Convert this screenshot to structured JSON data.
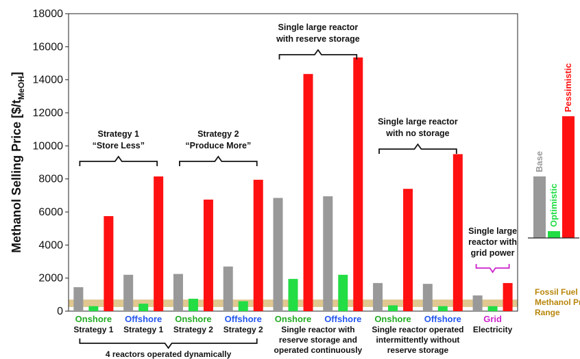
{
  "chart_data": {
    "type": "bar",
    "ylabel": "Methanol Selling Price [$/t",
    "ylabel_sub": "MeOH",
    "ylabel_end": "]",
    "ylim": [
      0,
      18000
    ],
    "yticks": [
      "0",
      "2000",
      "4000",
      "6000",
      "8000",
      "10000",
      "12000",
      "14000",
      "16000",
      "18000"
    ],
    "grid": false,
    "colors": {
      "Base": "#999999",
      "Optimistic": "#22dd44",
      "Pessimistic": "#ff1111"
    },
    "groups": [
      {
        "line1": "Onshore",
        "line1_color": "#22aa22",
        "line2": "Strategy 1",
        "values": [
          1450,
          300,
          5750
        ]
      },
      {
        "line1": "Offshore",
        "line1_color": "#2255ee",
        "line2": "Strategy 1",
        "values": [
          2200,
          450,
          8150
        ]
      },
      {
        "line1": "Onshore",
        "line1_color": "#22aa22",
        "line2": "Strategy 2",
        "values": [
          2250,
          750,
          6750
        ]
      },
      {
        "line1": "Offshore",
        "line1_color": "#2255ee",
        "line2": "Strategy 2",
        "values": [
          2700,
          600,
          7950
        ]
      },
      {
        "line1": "Onshore",
        "line1_color": "#22aa22",
        "line2": "",
        "values": [
          6850,
          1950,
          14350
        ]
      },
      {
        "line1": "Offshore",
        "line1_color": "#2255ee",
        "line2": "",
        "values": [
          6950,
          2200,
          15350
        ]
      },
      {
        "line1": "Onshore",
        "line1_color": "#22aa22",
        "line2": "",
        "values": [
          1700,
          350,
          7400
        ]
      },
      {
        "line1": "Offshore",
        "line1_color": "#2255ee",
        "line2": "",
        "values": [
          1650,
          300,
          9500
        ]
      },
      {
        "line1": "Grid",
        "line1_color": "#cc22cc",
        "line2": "Electricity",
        "line2_color": "#cc22cc",
        "values": [
          950,
          300,
          1700
        ]
      }
    ],
    "fossil_band": [
      250,
      700
    ],
    "bottom_labels": {
      "reserve": [
        "Single reactor with",
        "reserve storage and",
        "operated continuously"
      ],
      "intermittent": [
        "Single reactor operated",
        "intermittently without",
        "reserve storage"
      ],
      "four_reactors": "4 reactors operated dynamically"
    },
    "annotations": {
      "strategy1": [
        "Strategy 1",
        "“Store Less”"
      ],
      "strategy2": [
        "Strategy 2",
        "“Produce More”"
      ],
      "single_reserve": [
        "Single large reactor",
        "with reserve storage"
      ],
      "single_nostorage": [
        "Single large reactor",
        "with no storage"
      ],
      "grid_power": [
        "Single large",
        "reactor with",
        "grid power"
      ]
    },
    "fossil_label": [
      "Fossil Fuel",
      "Methanol Price",
      "Range"
    ],
    "legend": {
      "series": [
        "Base",
        "Optimistic",
        "Pessimistic"
      ],
      "placement": "right"
    }
  }
}
